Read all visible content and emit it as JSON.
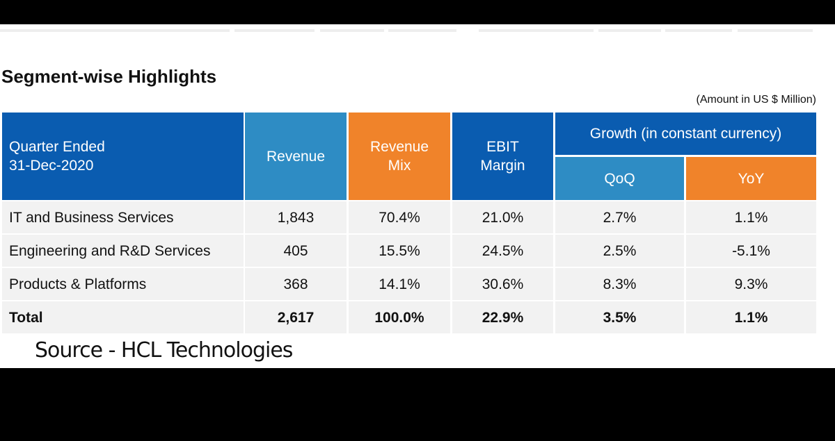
{
  "title": "Segment-wise Highlights",
  "unit_note": "(Amount in US $ Million)",
  "table": {
    "header": {
      "period": [
        "Quarter Ended",
        "31-Dec-2020"
      ],
      "revenue": [
        "Revenue"
      ],
      "revenue_mix": [
        "Revenue",
        "Mix"
      ],
      "ebit_margin": [
        "EBIT",
        "Margin"
      ],
      "growth": "Growth (in constant currency)",
      "qoq": "QoQ",
      "yoy": "YoY"
    },
    "rows": [
      [
        "IT and Business Services",
        "1,843",
        "70.4%",
        "21.0%",
        "2.7%",
        "1.1%"
      ],
      [
        "Engineering and R&D Services",
        "405",
        "15.5%",
        "24.5%",
        "2.5%",
        "-5.1%"
      ],
      [
        "Products & Platforms",
        "368",
        "14.1%",
        "30.6%",
        "8.3%",
        "9.3%"
      ],
      [
        "Total",
        "2,617",
        "100.0%",
        "22.9%",
        "3.5%",
        "1.1%"
      ]
    ]
  },
  "source": "Source - HCL Technologies"
}
